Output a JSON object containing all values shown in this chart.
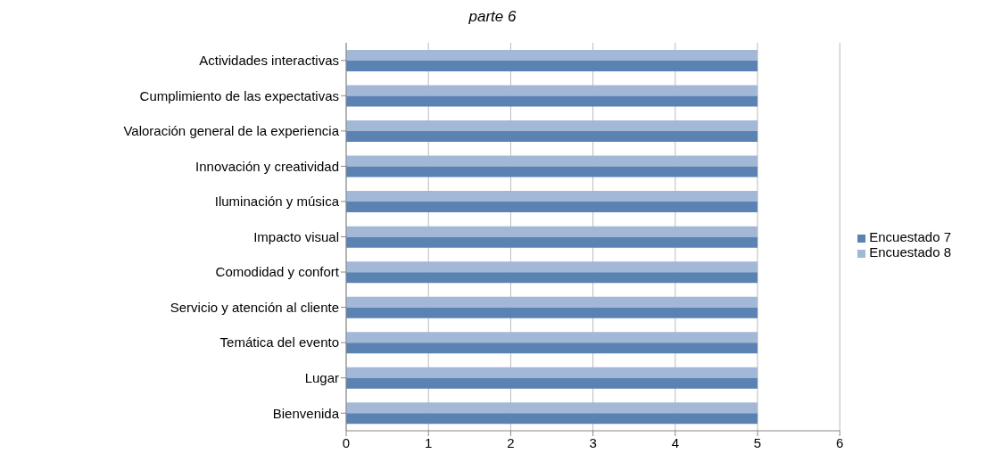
{
  "chart_data": {
    "type": "bar",
    "orientation": "horizontal",
    "title": "parte 6",
    "categories": [
      "Actividades interactivas",
      "Cumplimiento de las expectativas",
      "Valoración general de la experiencia",
      "Innovación y creatividad",
      "Iluminación y música",
      "Impacto visual",
      "Comodidad y confort",
      "Servicio y atención al cliente",
      "Temática del evento",
      "Lugar",
      "Bienvenida"
    ],
    "series": [
      {
        "name": "Encuestado 8",
        "color": "#a3b7d7",
        "values": [
          5,
          5,
          5,
          5,
          5,
          5,
          5,
          5,
          5,
          5,
          5
        ]
      },
      {
        "name": "Encuestado 7",
        "color": "#5a83b3",
        "values": [
          5,
          5,
          5,
          5,
          5,
          5,
          5,
          5,
          5,
          5,
          5
        ]
      }
    ],
    "xlim": [
      0,
      6
    ],
    "xticks": [
      0,
      1,
      2,
      3,
      4,
      5,
      6
    ],
    "grid": "x",
    "legend": "right"
  }
}
